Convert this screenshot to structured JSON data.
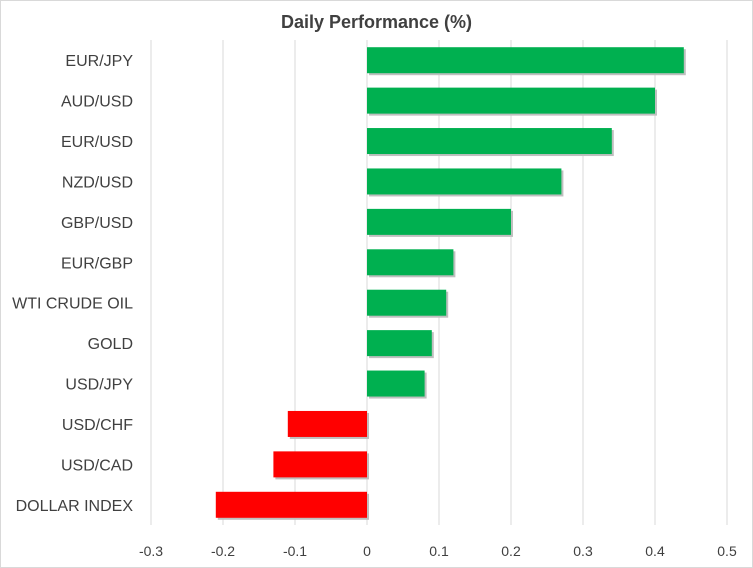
{
  "chart_data": {
    "type": "bar",
    "orientation": "horizontal",
    "title": "Daily Performance (%)",
    "xlabel": "",
    "ylabel": "",
    "categories": [
      "EUR/JPY",
      "AUD/USD",
      "EUR/USD",
      "NZD/USD",
      "GBP/USD",
      "EUR/GBP",
      "WTI CRUDE OIL",
      "GOLD",
      "USD/JPY",
      "USD/CHF",
      "USD/CAD",
      "DOLLAR INDEX"
    ],
    "values": [
      0.44,
      0.4,
      0.34,
      0.27,
      0.2,
      0.12,
      0.11,
      0.09,
      0.08,
      -0.11,
      -0.13,
      -0.21
    ],
    "xlim": [
      -0.3,
      0.5
    ],
    "xticks": [
      "-0.3",
      "-0.2",
      "-0.1",
      "0",
      "0.1",
      "0.2",
      "0.3",
      "0.4",
      "0.5"
    ],
    "grid": "vertical",
    "legend": "none",
    "colors": {
      "positive": "#00b050",
      "negative": "#ff0000",
      "grid": "#d9d9d9",
      "text": "#404040"
    }
  }
}
